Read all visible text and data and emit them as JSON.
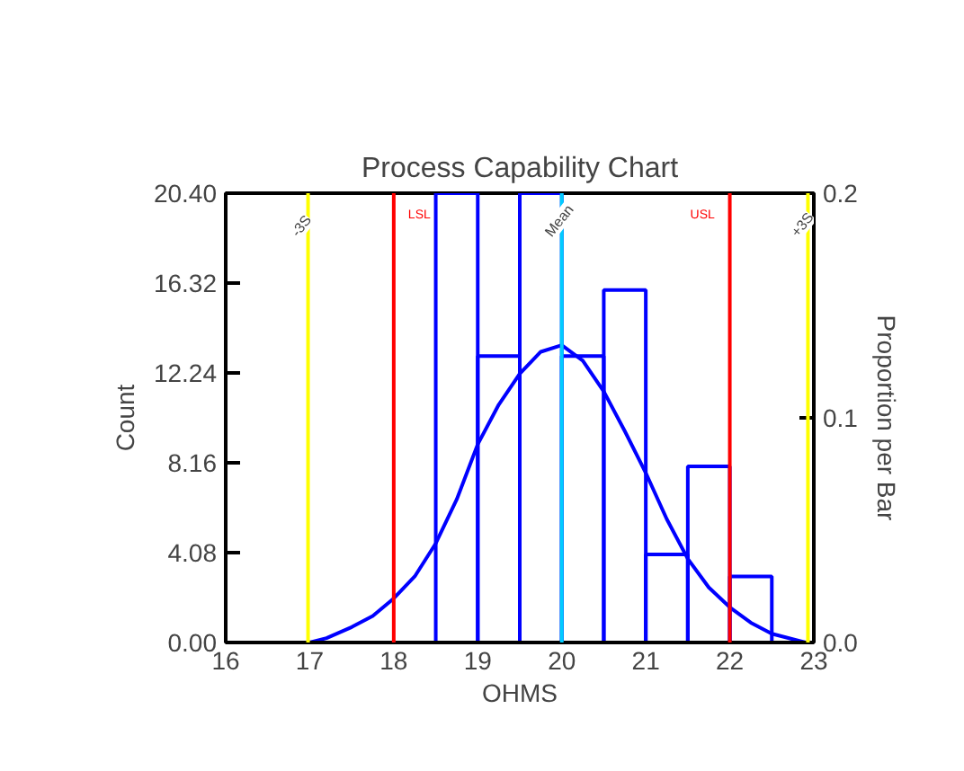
{
  "chart_data": {
    "type": "histogram",
    "title": "Process Capability Chart",
    "xlabel": "OHMS",
    "ylabel": "Count",
    "y2label": "Proportion per Bar",
    "bins": [
      18.5,
      19,
      19.5,
      20,
      20.5,
      21,
      21.5,
      22,
      22.5
    ],
    "values": [
      20.4,
      13,
      20.4,
      13,
      16,
      4,
      8,
      3
    ],
    "color": "#0000ff",
    "series": [
      {
        "type": "line",
        "color": "#0000ff",
        "x": [
          17,
          17.2,
          17.5,
          17.75,
          18,
          18.25,
          18.5,
          18.75,
          19,
          19.25,
          19.5,
          19.75,
          20,
          20.25,
          20.5,
          20.75,
          21,
          21.25,
          21.5,
          21.75,
          22,
          22.25,
          22.5,
          22.9
        ],
        "values": [
          0,
          0.2,
          0.7,
          1.2,
          2.0,
          3.0,
          4.5,
          6.5,
          9.0,
          10.8,
          12.2,
          13.2,
          13.5,
          12.8,
          11.4,
          9.6,
          7.7,
          5.6,
          3.8,
          2.5,
          1.6,
          0.9,
          0.4,
          0
        ]
      }
    ],
    "xlim": [
      16,
      23
    ],
    "xticks": [
      16,
      17,
      18,
      19,
      20,
      21,
      22,
      23
    ],
    "ylim": [
      0,
      20.4
    ],
    "yticks": [
      {
        "value": 0,
        "label": "0.00"
      },
      {
        "value": 4.08,
        "label": "4.08"
      },
      {
        "value": 8.16,
        "label": "8.16"
      },
      {
        "value": 12.24,
        "label": "12.24"
      },
      {
        "value": 16.32,
        "label": "16.32"
      },
      {
        "value": 20.4,
        "label": "20.40"
      }
    ],
    "y2lim": [
      0,
      0.2
    ],
    "y2ticks": [
      {
        "value": 0,
        "label": "0.0"
      },
      {
        "value": 0.1,
        "label": "0.1"
      },
      {
        "value": 0.2,
        "label": "0.2"
      }
    ],
    "ref_lines": [
      {
        "axis": "x",
        "value": 16.98,
        "label": "-3S",
        "color": "#ffff00"
      },
      {
        "axis": "x",
        "value": 18,
        "label": "LSL",
        "color": "#ff0000"
      },
      {
        "axis": "x",
        "value": 20.0,
        "label": "Mean",
        "color": "#00ccff"
      },
      {
        "axis": "x",
        "value": 22,
        "label": "USL",
        "color": "#ff0000"
      },
      {
        "axis": "x",
        "value": 22.93,
        "label": "+3S",
        "color": "#ffff00"
      }
    ],
    "grid": false
  }
}
